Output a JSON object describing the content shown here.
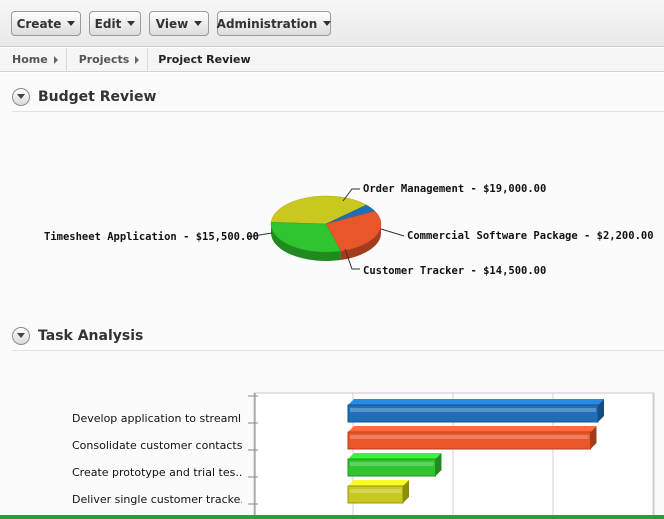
{
  "toolbar": {
    "buttons": [
      {
        "label": "Create"
      },
      {
        "label": "Edit"
      },
      {
        "label": "View"
      },
      {
        "label": "Administration"
      }
    ]
  },
  "breadcrumb": {
    "items": [
      "Home",
      "Projects"
    ],
    "current": "Project Review"
  },
  "sections": {
    "budget": {
      "title": "Budget Review"
    },
    "tasks": {
      "title": "Task Analysis"
    }
  },
  "chart_data": [
    {
      "type": "pie",
      "title": "",
      "slices": [
        {
          "label": "Order Management - $19,000.00",
          "value": 19000,
          "color": "#c8c81e"
        },
        {
          "label": "Commercial Software Package - $2,200.00",
          "value": 2200,
          "color": "#1e6fb8"
        },
        {
          "label": "Customer Tracker - $14,500.00",
          "value": 14500,
          "color": "#e8562a"
        },
        {
          "label": "Timesheet Application - $15,500.00",
          "value": 15500,
          "color": "#2ec52e"
        }
      ]
    },
    {
      "type": "bar",
      "orientation": "horizontal",
      "title": "",
      "categories": [
        "Develop application to streaml...",
        "Consolidate customer contacts ...",
        "Create prototype and trial tes...",
        "Deliver single customer tracke..."
      ],
      "values": [
        100,
        97,
        35,
        22
      ],
      "colors": [
        "#1e6fb8",
        "#e8562a",
        "#2ec52e",
        "#c8c81e"
      ],
      "xlim": [
        0,
        120
      ]
    }
  ]
}
